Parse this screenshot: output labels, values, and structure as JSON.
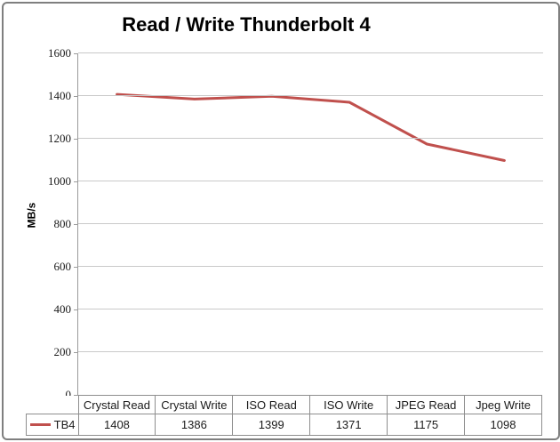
{
  "chart_data": {
    "type": "line",
    "title": "Read / Write Thunderbolt 4",
    "xlabel": "",
    "ylabel": "MB/s",
    "categories": [
      "Crystal Read",
      "Crystal Write",
      "ISO Read",
      "ISO Write",
      "JPEG Read",
      "Jpeg Write"
    ],
    "series": [
      {
        "name": "TB4",
        "values": [
          1408,
          1386,
          1399,
          1371,
          1175,
          1098
        ],
        "color": "#C0504D"
      }
    ],
    "ylim": [
      0,
      1600
    ],
    "ytick_step": 200,
    "grid": true,
    "gridline_color": "#C9C9C9",
    "axis_color": "#9B9B9B",
    "legend_position": "data-table-left",
    "data_table_shown": true
  }
}
